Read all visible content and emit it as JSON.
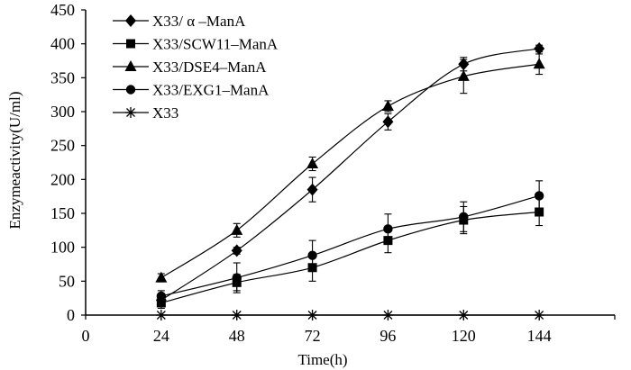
{
  "chart_data": {
    "type": "line",
    "title": "",
    "xlabel": "Time(h)",
    "ylabel": "Enzymeactivity(U/ml)",
    "x": [
      24,
      48,
      72,
      96,
      120,
      144
    ],
    "xticks": [
      0,
      24,
      48,
      72,
      96,
      120,
      144
    ],
    "xlim": [
      0,
      168
    ],
    "ylim": [
      0,
      450
    ],
    "yticks": [
      0,
      50,
      100,
      150,
      200,
      250,
      300,
      350,
      400,
      450
    ],
    "grid": false,
    "legend_position": "top-left",
    "series": [
      {
        "name": "X33/ α –ManA",
        "marker": "diamond",
        "values": [
          22,
          95,
          185,
          285,
          370,
          393
        ],
        "errors": [
          6,
          5,
          18,
          12,
          10,
          5
        ]
      },
      {
        "name": "X33/SCW11–ManA",
        "marker": "square",
        "values": [
          18,
          48,
          70,
          110,
          140,
          152
        ],
        "errors": [
          8,
          12,
          20,
          18,
          20,
          20
        ]
      },
      {
        "name": "X33/DSE4–ManA",
        "marker": "triangle",
        "values": [
          55,
          125,
          223,
          308,
          352,
          370
        ],
        "errors": [
          6,
          10,
          10,
          8,
          25,
          15
        ]
      },
      {
        "name": "X33/EXG1–ManA",
        "marker": "circle",
        "values": [
          28,
          55,
          88,
          127,
          145,
          176
        ],
        "errors": [
          8,
          22,
          22,
          22,
          22,
          22
        ]
      },
      {
        "name": "X33",
        "marker": "asterisk",
        "values": [
          0,
          0,
          0,
          0,
          0,
          0
        ],
        "errors": [
          0,
          0,
          0,
          0,
          0,
          0
        ]
      }
    ]
  }
}
